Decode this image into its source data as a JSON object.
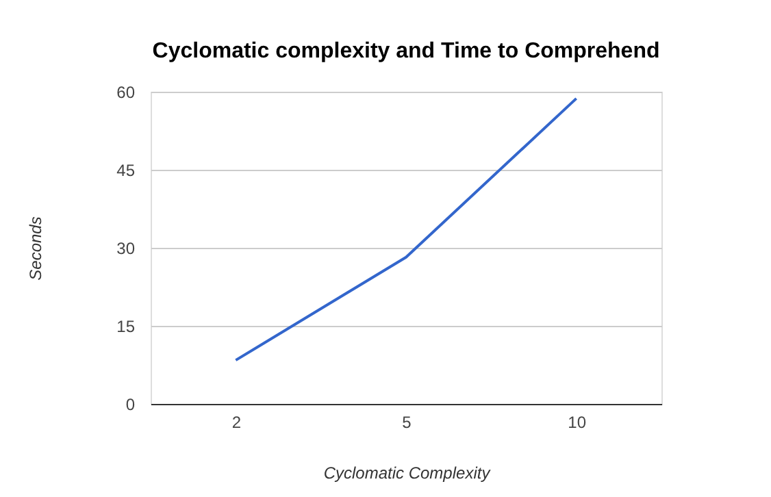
{
  "chart_data": {
    "type": "line",
    "title": "Cyclomatic complexity and Time to Comprehend",
    "xlabel": "Cyclomatic Complexity",
    "ylabel": "Seconds",
    "categories": [
      "2",
      "5",
      "10"
    ],
    "series": [
      {
        "color": "#3366cc",
        "values": [
          8.4,
          28.2,
          58.7
        ]
      }
    ],
    "ylim": [
      0,
      60
    ],
    "yticks": [
      0,
      15,
      30,
      45,
      60
    ],
    "grid": "y",
    "marker": "none",
    "line_style": "solid"
  }
}
